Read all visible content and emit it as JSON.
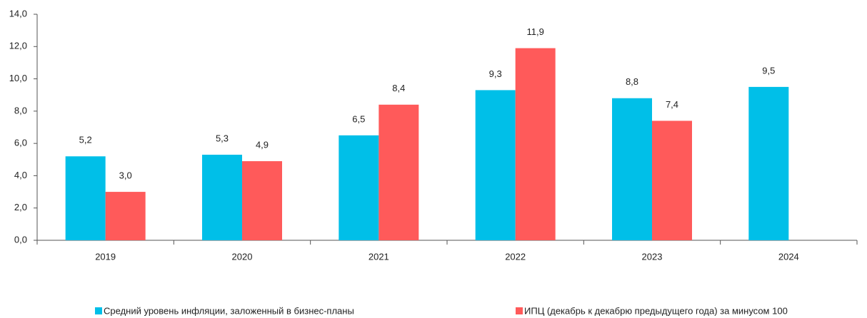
{
  "chart_data": {
    "type": "bar",
    "categories": [
      "2019",
      "2020",
      "2021",
      "2022",
      "2023",
      "2024"
    ],
    "series": [
      {
        "name": "Средний уровень инфляции, заложенный в бизнес-планы",
        "color": "#00bfe8",
        "values": [
          5.2,
          5.3,
          6.5,
          9.3,
          8.8,
          9.5
        ],
        "value_labels": [
          "5,2",
          "5,3",
          "6,5",
          "9,3",
          "8,8",
          "9,5"
        ]
      },
      {
        "name": "ИПЦ (декабрь к декабрю предыдущего года) за минусом 100",
        "color": "#ff5a5a",
        "values": [
          3.0,
          4.9,
          8.4,
          11.9,
          7.4,
          null
        ],
        "value_labels": [
          "3,0",
          "4,9",
          "8,4",
          "11,9",
          "7,4",
          null
        ]
      }
    ],
    "ylim": [
      0,
      14
    ],
    "yticks": [
      {
        "value": 0,
        "label": "0,0"
      },
      {
        "value": 2,
        "label": "2,0"
      },
      {
        "value": 4,
        "label": "4,0"
      },
      {
        "value": 6,
        "label": "6,0"
      },
      {
        "value": 8,
        "label": "8,0"
      },
      {
        "value": 10,
        "label": "10,0"
      },
      {
        "value": 12,
        "label": "12,0"
      },
      {
        "value": 14,
        "label": "14,0"
      }
    ],
    "legend": "bottom"
  }
}
